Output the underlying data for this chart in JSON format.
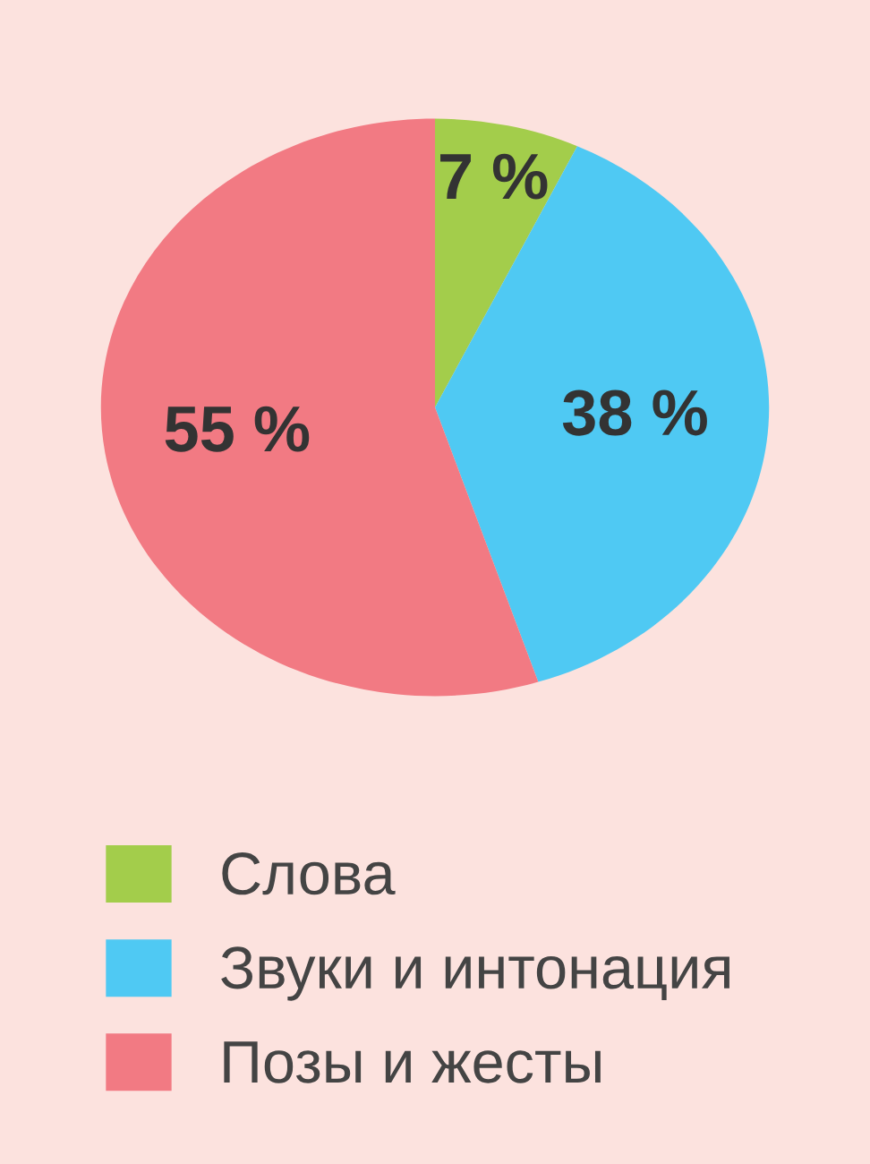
{
  "chart_data": {
    "type": "pie",
    "categories": [
      "Слова",
      "Звуки и интонация",
      "Позы и жесты"
    ],
    "values": [
      7,
      38,
      55
    ],
    "colors": [
      "#a3cd4b",
      "#4fc9f3",
      "#f27a83"
    ],
    "value_labels": [
      "7 %",
      "38 %",
      "55 %"
    ],
    "legend": "bottom"
  }
}
